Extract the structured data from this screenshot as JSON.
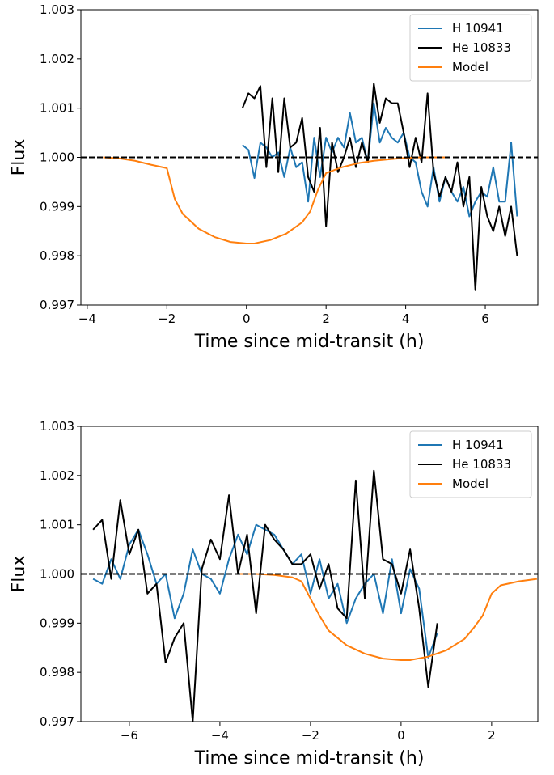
{
  "chart_data": [
    {
      "type": "line",
      "xlabel": "Time since mid-transit (h)",
      "ylabel": "Flux",
      "xlim": [
        -4.16,
        7.32
      ],
      "ylim": [
        0.997,
        1.003
      ],
      "xticks": [
        {
          "value": -4,
          "label": "−4"
        },
        {
          "value": -2,
          "label": "−2"
        },
        0,
        2,
        4,
        6
      ],
      "yticks": [
        {
          "value": 0.997,
          "label": "0.997"
        },
        {
          "value": 0.998,
          "label": "0.998"
        },
        {
          "value": 0.999,
          "label": "0.999"
        },
        {
          "value": 1.0,
          "label": "1.000"
        },
        {
          "value": 1.001,
          "label": "1.001"
        },
        {
          "value": 1.002,
          "label": "1.002"
        },
        {
          "value": 1.003,
          "label": "1.003"
        }
      ],
      "hline": 1.0,
      "legend": "upper right",
      "series": [
        {
          "name": "H 10941",
          "color": "#1f77b4",
          "x": [
            -0.1,
            0.05,
            0.2,
            0.35,
            0.5,
            0.65,
            0.8,
            0.95,
            1.1,
            1.25,
            1.4,
            1.55,
            1.7,
            1.85,
            2.0,
            2.15,
            2.3,
            2.45,
            2.6,
            2.75,
            2.9,
            3.05,
            3.2,
            3.35,
            3.5,
            3.65,
            3.8,
            3.95,
            4.1,
            4.25,
            4.4,
            4.55,
            4.7,
            4.85,
            5.0,
            5.15,
            5.3,
            5.45,
            5.6,
            5.75,
            5.9,
            6.05,
            6.2,
            6.35,
            6.5,
            6.65,
            6.8
          ],
          "values": [
            1.00025,
            1.00015,
            0.99958,
            1.0003,
            1.0002,
            1.0,
            1.0001,
            0.9996,
            1.0002,
            0.9998,
            0.9999,
            0.9991,
            1.0004,
            0.9996,
            1.0004,
            1.0001,
            1.0004,
            1.0002,
            1.0009,
            1.0003,
            1.0004,
            0.9999,
            1.0011,
            1.0003,
            1.0006,
            1.0004,
            1.0003,
            1.0005,
            1.0,
            0.9999,
            0.9993,
            0.999,
            0.9998,
            0.9991,
            0.9996,
            0.9993,
            0.9991,
            0.9994,
            0.9988,
            0.9991,
            0.9993,
            0.9992,
            0.9998,
            0.9991,
            0.9991,
            1.0003,
            0.9988
          ]
        },
        {
          "name": "He 10833",
          "color": "#000000",
          "x": [
            -0.1,
            0.05,
            0.2,
            0.35,
            0.5,
            0.65,
            0.8,
            0.95,
            1.1,
            1.25,
            1.4,
            1.55,
            1.7,
            1.85,
            2.0,
            2.15,
            2.3,
            2.45,
            2.6,
            2.75,
            2.9,
            3.05,
            3.2,
            3.35,
            3.5,
            3.65,
            3.8,
            3.95,
            4.1,
            4.25,
            4.4,
            4.55,
            4.7,
            4.85,
            5.0,
            5.15,
            5.3,
            5.45,
            5.6,
            5.75,
            5.9,
            6.05,
            6.2,
            6.35,
            6.5,
            6.65,
            6.8
          ],
          "values": [
            1.001,
            1.0013,
            1.0012,
            1.00145,
            0.9998,
            1.0012,
            0.9997,
            1.0012,
            1.0002,
            1.0003,
            1.0008,
            0.9996,
            0.9993,
            1.0006,
            0.9986,
            1.0003,
            0.9997,
            1.0,
            1.0004,
            0.9998,
            1.0003,
            0.9999,
            1.0015,
            1.0007,
            1.0012,
            1.0011,
            1.0011,
            1.0005,
            0.9998,
            1.0004,
            0.9999,
            1.0013,
            0.9997,
            0.9992,
            0.9996,
            0.9993,
            0.9999,
            0.999,
            0.9996,
            0.9973,
            0.9994,
            0.9988,
            0.9985,
            0.999,
            0.9984,
            0.999,
            0.998
          ]
        },
        {
          "name": "Model",
          "color": "#ff7f0e",
          "x": [
            -3.6,
            -3.2,
            -2.8,
            -2.4,
            -2.0,
            -1.8,
            -1.6,
            -1.2,
            -0.8,
            -0.4,
            0,
            0.2,
            0.6,
            1.0,
            1.4,
            1.6,
            1.8,
            2.0,
            2.4,
            2.8,
            3.2,
            3.6,
            4.0,
            4.4,
            4.8,
            5.0
          ],
          "values": [
            1.0,
            0.99998,
            0.99993,
            0.99985,
            0.99978,
            0.99915,
            0.99885,
            0.99855,
            0.99838,
            0.99828,
            0.99825,
            0.99825,
            0.99832,
            0.99845,
            0.99868,
            0.9989,
            0.99935,
            0.99968,
            0.9998,
            0.99988,
            0.99993,
            0.99996,
            0.99999,
            1.0,
            1.0,
            1.0
          ]
        }
      ]
    },
    {
      "type": "line",
      "xlabel": "Time since mid-transit (h)",
      "ylabel": "Flux",
      "xlim": [
        -7.07,
        3.02
      ],
      "ylim": [
        0.997,
        1.003
      ],
      "xticks": [
        {
          "value": -6,
          "label": "−6"
        },
        {
          "value": -4,
          "label": "−4"
        },
        {
          "value": -2,
          "label": "−2"
        },
        0,
        2
      ],
      "yticks": [
        {
          "value": 0.997,
          "label": "0.997"
        },
        {
          "value": 0.998,
          "label": "0.998"
        },
        {
          "value": 0.999,
          "label": "0.999"
        },
        {
          "value": 1.0,
          "label": "1.000"
        },
        {
          "value": 1.001,
          "label": "1.001"
        },
        {
          "value": 1.002,
          "label": "1.002"
        },
        {
          "value": 1.003,
          "label": "1.003"
        }
      ],
      "hline": 1.0,
      "legend": "upper right",
      "series": [
        {
          "name": "H 10941",
          "color": "#1f77b4",
          "x": [
            -6.8,
            -6.6,
            -6.4,
            -6.2,
            -6.0,
            -5.8,
            -5.6,
            -5.4,
            -5.2,
            -5.0,
            -4.8,
            -4.6,
            -4.4,
            -4.2,
            -4.0,
            -3.8,
            -3.6,
            -3.4,
            -3.2,
            -3.0,
            -2.8,
            -2.6,
            -2.4,
            -2.2,
            -2.0,
            -1.8,
            -1.6,
            -1.4,
            -1.2,
            -1.0,
            -0.8,
            -0.6,
            -0.4,
            -0.2,
            0.0,
            0.2,
            0.4,
            0.6,
            0.8
          ],
          "values": [
            0.9999,
            0.9998,
            1.0003,
            0.9999,
            1.0006,
            1.0009,
            1.0004,
            0.9998,
            1.0,
            0.9991,
            0.9996,
            1.0005,
            1.0,
            0.9999,
            0.9996,
            1.0003,
            1.0008,
            1.0004,
            1.001,
            1.0009,
            1.0008,
            1.0005,
            1.0002,
            1.0004,
            0.9996,
            1.0003,
            0.9995,
            0.9998,
            0.999,
            0.9995,
            0.9998,
            1.0,
            0.9992,
            1.0003,
            0.9992,
            1.0001,
            0.9997,
            0.9983,
            0.9988
          ]
        },
        {
          "name": "He 10833",
          "color": "#000000",
          "x": [
            -6.8,
            -6.6,
            -6.4,
            -6.2,
            -6.0,
            -5.8,
            -5.6,
            -5.4,
            -5.2,
            -5.0,
            -4.8,
            -4.6,
            -4.4,
            -4.2,
            -4.0,
            -3.8,
            -3.6,
            -3.4,
            -3.2,
            -3.0,
            -2.8,
            -2.6,
            -2.4,
            -2.2,
            -2.0,
            -1.8,
            -1.6,
            -1.4,
            -1.2,
            -1.0,
            -0.8,
            -0.6,
            -0.4,
            -0.2,
            0.0,
            0.2,
            0.4,
            0.6,
            0.8
          ],
          "values": [
            1.0009,
            1.0011,
            0.9999,
            1.0015,
            1.0004,
            1.0009,
            0.9996,
            0.9998,
            0.9982,
            0.9987,
            0.999,
            0.997,
            1.0001,
            1.0007,
            1.0003,
            1.0016,
            1.0,
            1.0008,
            0.9992,
            1.001,
            1.0007,
            1.0005,
            1.0002,
            1.0002,
            1.0004,
            0.9997,
            1.0002,
            0.9993,
            0.9991,
            1.0019,
            0.9995,
            1.0021,
            1.0003,
            1.0002,
            0.9996,
            1.0005,
            0.9993,
            0.9977,
            0.999
          ]
        },
        {
          "name": "Model",
          "color": "#ff7f0e",
          "x": [
            -3.6,
            -3.2,
            -2.8,
            -2.4,
            -2.2,
            -2.0,
            -1.8,
            -1.6,
            -1.2,
            -0.8,
            -0.4,
            0.0,
            0.2,
            0.6,
            1.0,
            1.4,
            1.6,
            1.8,
            2.0,
            2.2,
            2.6,
            3.0
          ],
          "values": [
            1.0,
            1.0,
            0.99998,
            0.99993,
            0.99985,
            0.9995,
            0.99915,
            0.99885,
            0.99855,
            0.99838,
            0.99828,
            0.99825,
            0.99825,
            0.99832,
            0.99845,
            0.99868,
            0.9989,
            0.99915,
            0.9996,
            0.99977,
            0.99985,
            0.9999
          ]
        }
      ]
    }
  ]
}
